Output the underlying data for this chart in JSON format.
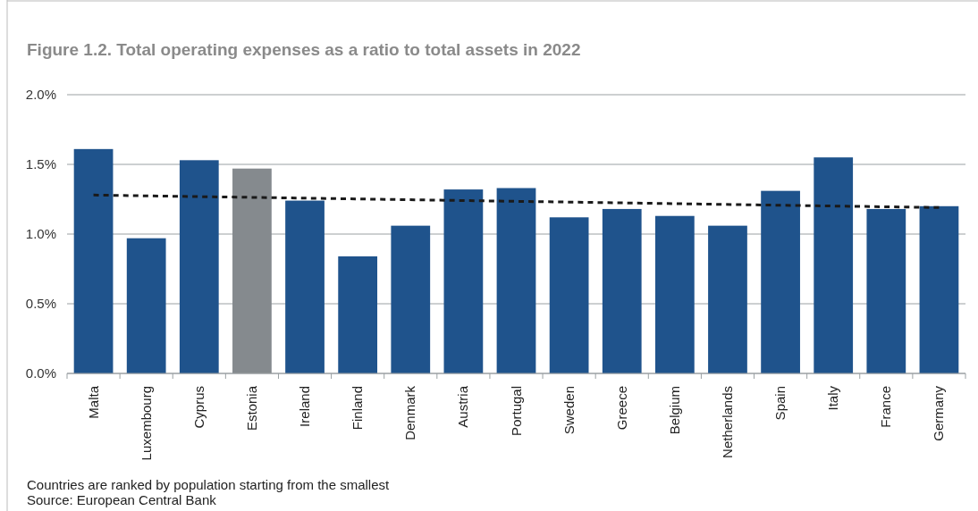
{
  "chart_data": {
    "type": "bar",
    "title": "Figure 1.2. Total operating expenses as a ratio to total assets in 2022",
    "categories": [
      "Malta",
      "Luxembourg",
      "Cyprus",
      "Estonia",
      "Ireland",
      "Finland",
      "Denmark",
      "Austria",
      "Portugal",
      "Sweden",
      "Greece",
      "Belgium",
      "Netherlands",
      "Spain",
      "Italy",
      "France",
      "Germany"
    ],
    "series": [
      {
        "colors": [
          "#1f538c",
          "#1f538c",
          "#1f538c",
          "#858a8e",
          "#1f538c",
          "#1f538c",
          "#1f538c",
          "#1f538c",
          "#1f538c",
          "#1f538c",
          "#1f538c",
          "#1f538c",
          "#1f538c",
          "#1f538c",
          "#1f538c",
          "#1f538c",
          "#1f538c"
        ],
        "values": [
          1.61,
          0.97,
          1.53,
          1.47,
          1.24,
          0.84,
          1.06,
          1.32,
          1.33,
          1.12,
          1.18,
          1.13,
          1.06,
          1.31,
          1.55,
          1.18,
          1.2
        ]
      },
      {
        "type": "line",
        "color": "#1a1a1a",
        "line_style": "dashed",
        "x": [
          "Malta",
          "Germany"
        ],
        "values": [
          1.28,
          1.19
        ]
      }
    ],
    "ylim": [
      0,
      2
    ],
    "yticks": [
      {
        "value": 0,
        "label": "0.0%"
      },
      {
        "value": 0.5,
        "label": "0.5%"
      },
      {
        "value": 1,
        "label": "1.0%"
      },
      {
        "value": 1.5,
        "label": "1.5%"
      },
      {
        "value": 2,
        "label": "2.0%"
      }
    ],
    "grid": "y",
    "annotations": [
      "Countries are ranked by population starting from the smallest",
      "Source: European Central Bank"
    ]
  }
}
